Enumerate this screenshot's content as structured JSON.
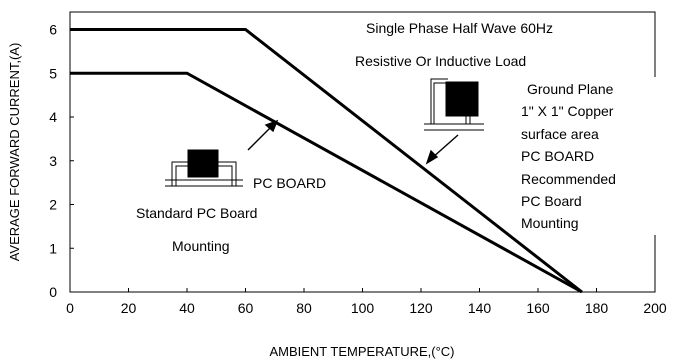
{
  "chart_data": {
    "type": "line",
    "title": "",
    "xlabel": "AMBIENT TEMPERATURE,(°C)",
    "ylabel": "AVERAGE FORWARD CURRENT,(A)",
    "xlim": [
      0,
      200
    ],
    "ylim": [
      0,
      6.4
    ],
    "xticks": [
      0,
      20,
      40,
      60,
      80,
      100,
      120,
      140,
      160,
      180,
      200
    ],
    "yticks": [
      0,
      1,
      2,
      3,
      4,
      5,
      6
    ],
    "grid": false,
    "series": [
      {
        "x": [
          0,
          60,
          175
        ],
        "y": [
          6,
          6,
          0
        ]
      },
      {
        "x": [
          0,
          40,
          175
        ],
        "y": [
          5,
          5,
          0
        ]
      }
    ],
    "annotations": [
      "Single Phase Half Wave 60Hz",
      "Resistive Or Inductive Load",
      "Ground Plane",
      "1\" X 1\" Copper",
      "surface area",
      "PC BOARD",
      "Recommended",
      "PC Board",
      "Mounting",
      "PC BOARD",
      "Standard PC Board",
      "Mounting"
    ]
  }
}
